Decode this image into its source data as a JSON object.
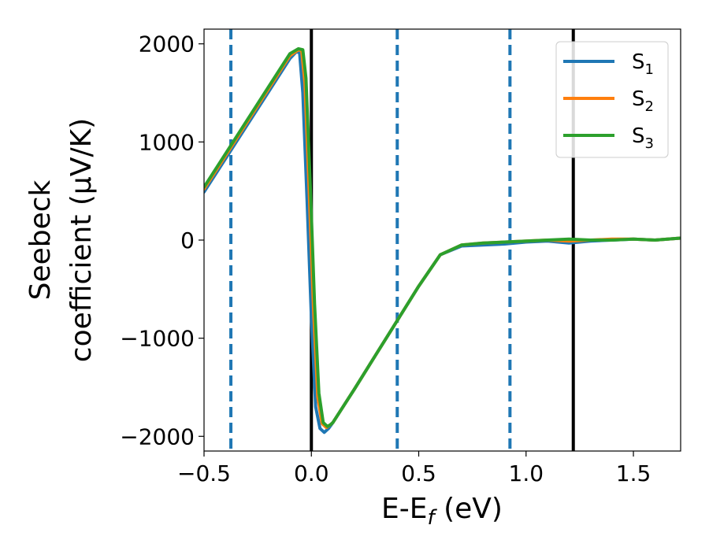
{
  "chart_data": {
    "type": "line",
    "xlabel": {
      "main": "E-E",
      "sub": "f",
      "rest": " (eV)"
    },
    "ylabel": {
      "line1": "Seebeck",
      "line2": "coefficient  (μV/K)"
    },
    "xlim": [
      -0.5,
      1.72
    ],
    "ylim": [
      -2150,
      2150
    ],
    "xticks": [
      {
        "v": -0.5,
        "label": "−0.5"
      },
      {
        "v": 0.0,
        "label": "0.0"
      },
      {
        "v": 0.5,
        "label": "0.5"
      },
      {
        "v": 1.0,
        "label": "1.0"
      },
      {
        "v": 1.5,
        "label": "1.5"
      }
    ],
    "yticks": [
      {
        "v": 2000,
        "label": "2000"
      },
      {
        "v": 1000,
        "label": "1000"
      },
      {
        "v": 0,
        "label": "0"
      },
      {
        "v": -1000,
        "label": "−1000"
      },
      {
        "v": -2000,
        "label": "−2000"
      }
    ],
    "grid": false,
    "legend_position": "top-right",
    "vlines": [
      {
        "x": -0.375,
        "style": "dashed",
        "color": "#1f77b4"
      },
      {
        "x": 0.0,
        "style": "solid",
        "color": "#000000"
      },
      {
        "x": 0.4,
        "style": "dashed",
        "color": "#1f77b4"
      },
      {
        "x": 0.925,
        "style": "dashed",
        "color": "#1f77b4"
      },
      {
        "x": 1.22,
        "style": "solid",
        "color": "#000000"
      }
    ],
    "series": [
      {
        "name": "S",
        "sub": "1",
        "color": "#1f77b4",
        "x": [
          -0.5,
          -0.4,
          -0.3,
          -0.2,
          -0.1,
          -0.07,
          -0.055,
          -0.04,
          -0.02,
          0.0,
          0.02,
          0.04,
          0.06,
          0.08,
          0.1,
          0.2,
          0.3,
          0.4,
          0.5,
          0.6,
          0.7,
          0.8,
          0.9,
          1.0,
          1.1,
          1.2,
          1.3,
          1.4,
          1.5,
          1.6,
          1.72
        ],
        "y": [
          490,
          830,
          1170,
          1510,
          1850,
          1920,
          1910,
          1500,
          400,
          -800,
          -1700,
          -1920,
          -1960,
          -1920,
          -1860,
          -1520,
          -1170,
          -820,
          -470,
          -150,
          -60,
          -50,
          -40,
          -20,
          -10,
          -30,
          -10,
          0,
          10,
          0,
          20
        ]
      },
      {
        "name": "S",
        "sub": "2",
        "color": "#ff7f0e",
        "x": [
          -0.5,
          -0.4,
          -0.3,
          -0.2,
          -0.1,
          -0.06,
          -0.045,
          -0.03,
          -0.01,
          0.01,
          0.03,
          0.05,
          0.07,
          0.09,
          0.1,
          0.2,
          0.3,
          0.4,
          0.5,
          0.6,
          0.7,
          0.8,
          0.9,
          1.0,
          1.1,
          1.2,
          1.3,
          1.4,
          1.5,
          1.6,
          1.72
        ],
        "y": [
          520,
          860,
          1200,
          1540,
          1880,
          1940,
          1930,
          1600,
          500,
          -700,
          -1600,
          -1870,
          -1910,
          -1880,
          -1860,
          -1520,
          -1170,
          -820,
          -470,
          -150,
          -50,
          -30,
          -20,
          -10,
          0,
          -10,
          0,
          10,
          10,
          0,
          20
        ]
      },
      {
        "name": "S",
        "sub": "3",
        "color": "#2ca02c",
        "x": [
          -0.5,
          -0.4,
          -0.3,
          -0.2,
          -0.1,
          -0.06,
          -0.04,
          -0.025,
          -0.005,
          0.015,
          0.035,
          0.055,
          0.075,
          0.09,
          0.1,
          0.2,
          0.3,
          0.4,
          0.5,
          0.6,
          0.7,
          0.8,
          0.9,
          1.0,
          1.1,
          1.2,
          1.3,
          1.4,
          1.5,
          1.6,
          1.72
        ],
        "y": [
          540,
          880,
          1220,
          1560,
          1900,
          1950,
          1940,
          1650,
          550,
          -650,
          -1560,
          -1860,
          -1900,
          -1880,
          -1860,
          -1520,
          -1170,
          -820,
          -470,
          -150,
          -50,
          -30,
          -20,
          -10,
          0,
          10,
          0,
          0,
          10,
          0,
          20
        ]
      }
    ]
  }
}
